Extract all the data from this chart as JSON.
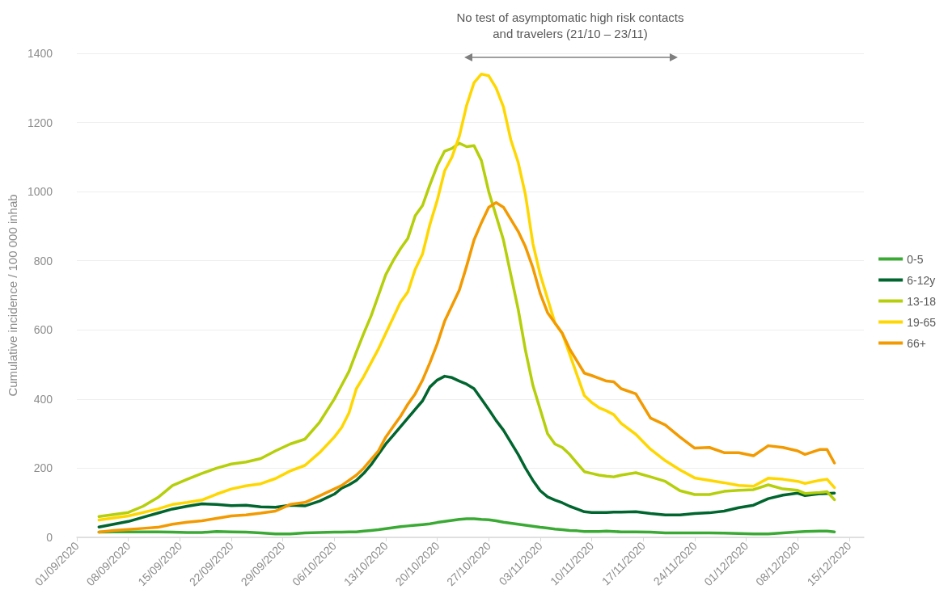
{
  "chart_data": {
    "type": "line",
    "ylabel": "Cumulative incidence / 100 000 inhab",
    "annotations": [
      "No test of asymptomatic high risk contacts and travelers (21/10 – 23/11)"
    ],
    "x": [
      "2020-09-04",
      "2020-09-06",
      "2020-09-08",
      "2020-09-10",
      "2020-09-12",
      "2020-09-14",
      "2020-09-16",
      "2020-09-18",
      "2020-09-20",
      "2020-09-22",
      "2020-09-24",
      "2020-09-26",
      "2020-09-28",
      "2020-09-30",
      "2020-10-02",
      "2020-10-04",
      "2020-10-06",
      "2020-10-07",
      "2020-10-08",
      "2020-10-09",
      "2020-10-10",
      "2020-10-11",
      "2020-10-12",
      "2020-10-13",
      "2020-10-14",
      "2020-10-15",
      "2020-10-16",
      "2020-10-17",
      "2020-10-18",
      "2020-10-19",
      "2020-10-20",
      "2020-10-21",
      "2020-10-22",
      "2020-10-23",
      "2020-10-24",
      "2020-10-25",
      "2020-10-26",
      "2020-10-27",
      "2020-10-28",
      "2020-10-29",
      "2020-10-30",
      "2020-10-31",
      "2020-11-01",
      "2020-11-02",
      "2020-11-03",
      "2020-11-04",
      "2020-11-05",
      "2020-11-06",
      "2020-11-07",
      "2020-11-08",
      "2020-11-09",
      "2020-11-10",
      "2020-11-11",
      "2020-11-12",
      "2020-11-13",
      "2020-11-14",
      "2020-11-16",
      "2020-11-18",
      "2020-11-20",
      "2020-11-22",
      "2020-11-24",
      "2020-11-26",
      "2020-11-28",
      "2020-11-30",
      "2020-12-02",
      "2020-12-04",
      "2020-12-06",
      "2020-12-08",
      "2020-12-09",
      "2020-12-11",
      "2020-12-12",
      "2020-12-13"
    ],
    "series": [
      {
        "name": "0-5",
        "color": "#3aaa35",
        "values": [
          15,
          16,
          16,
          16,
          16,
          15,
          14,
          14,
          17,
          16,
          15,
          13,
          10,
          10,
          13,
          14,
          15,
          15,
          16,
          16,
          18,
          20,
          22,
          25,
          28,
          31,
          33,
          35,
          37,
          39,
          43,
          46,
          49,
          52,
          54,
          54,
          52,
          51,
          48,
          44,
          41,
          38,
          35,
          32,
          29,
          27,
          24,
          22,
          20,
          19,
          17,
          17,
          17,
          18,
          17,
          16,
          16,
          15,
          13,
          13,
          13,
          13,
          12,
          11,
          10,
          10,
          13,
          16,
          17,
          18,
          18,
          16
        ]
      },
      {
        "name": "6-12y",
        "color": "#00652e",
        "values": [
          30,
          38,
          46,
          58,
          70,
          82,
          90,
          97,
          95,
          92,
          93,
          88,
          87,
          93,
          91,
          105,
          125,
          142,
          152,
          165,
          185,
          210,
          240,
          270,
          295,
          320,
          345,
          370,
          395,
          435,
          455,
          466,
          462,
          452,
          443,
          430,
          400,
          370,
          338,
          310,
          275,
          240,
          200,
          165,
          135,
          117,
          108,
          100,
          90,
          82,
          74,
          72,
          72,
          72,
          73,
          73,
          74,
          69,
          65,
          65,
          69,
          71,
          76,
          86,
          93,
          112,
          122,
          128,
          121,
          126,
          127,
          128
        ]
      },
      {
        "name": "13-18",
        "color": "#b5cf0a",
        "values": [
          60,
          66,
          72,
          90,
          115,
          150,
          168,
          185,
          200,
          212,
          218,
          228,
          250,
          270,
          284,
          333,
          400,
          440,
          480,
          536,
          590,
          640,
          700,
          760,
          800,
          835,
          865,
          930,
          960,
          1020,
          1075,
          1117,
          1125,
          1140,
          1130,
          1133,
          1090,
          1000,
          930,
          860,
          760,
          660,
          540,
          440,
          370,
          300,
          270,
          260,
          240,
          215,
          190,
          185,
          180,
          177,
          175,
          180,
          187,
          175,
          162,
          135,
          124,
          124,
          133,
          136,
          138,
          152,
          140,
          136,
          127,
          130,
          132,
          109
        ]
      },
      {
        "name": "19-65",
        "color": "#ffd700",
        "values": [
          50,
          56,
          62,
          72,
          82,
          95,
          101,
          108,
          125,
          140,
          149,
          155,
          170,
          192,
          208,
          245,
          290,
          318,
          360,
          430,
          465,
          505,
          545,
          590,
          635,
          680,
          710,
          775,
          820,
          905,
          975,
          1060,
          1100,
          1160,
          1250,
          1315,
          1340,
          1335,
          1300,
          1245,
          1150,
          1085,
          990,
          850,
          760,
          690,
          620,
          590,
          530,
          470,
          410,
          390,
          375,
          366,
          355,
          330,
          298,
          255,
          222,
          195,
          172,
          165,
          158,
          150,
          148,
          171,
          168,
          162,
          156,
          165,
          168,
          144
        ]
      },
      {
        "name": "66+",
        "color": "#f29a00",
        "values": [
          15,
          20,
          23,
          26,
          29,
          38,
          44,
          48,
          55,
          62,
          65,
          70,
          76,
          95,
          101,
          120,
          140,
          150,
          165,
          180,
          200,
          225,
          250,
          290,
          320,
          350,
          385,
          415,
          455,
          505,
          560,
          625,
          670,
          715,
          785,
          860,
          910,
          955,
          968,
          955,
          920,
          885,
          840,
          780,
          705,
          650,
          620,
          590,
          545,
          510,
          475,
          468,
          460,
          452,
          450,
          430,
          415,
          345,
          325,
          290,
          258,
          260,
          245,
          245,
          236,
          265,
          260,
          250,
          240,
          254,
          254,
          215
        ]
      }
    ],
    "xlim": [
      "2020-09-01",
      "2020-12-17"
    ],
    "xticks": [
      {
        "value": "2020-09-01",
        "label": "01/09/2020"
      },
      {
        "value": "2020-09-08",
        "label": "08/09/2020"
      },
      {
        "value": "2020-09-15",
        "label": "15/09/2020"
      },
      {
        "value": "2020-09-22",
        "label": "22/09/2020"
      },
      {
        "value": "2020-09-29",
        "label": "29/09/2020"
      },
      {
        "value": "2020-10-06",
        "label": "06/10/2020"
      },
      {
        "value": "2020-10-13",
        "label": "13/10/2020"
      },
      {
        "value": "2020-10-20",
        "label": "20/10/2020"
      },
      {
        "value": "2020-10-27",
        "label": "27/10/2020"
      },
      {
        "value": "2020-11-03",
        "label": "03/11/2020"
      },
      {
        "value": "2020-11-10",
        "label": "10/11/2020"
      },
      {
        "value": "2020-11-17",
        "label": "17/11/2020"
      },
      {
        "value": "2020-11-24",
        "label": "24/11/2020"
      },
      {
        "value": "2020-12-01",
        "label": "01/12/2020"
      },
      {
        "value": "2020-12-08",
        "label": "08/12/2020"
      },
      {
        "value": "2020-12-15",
        "label": "15/12/2020"
      }
    ],
    "ylim": [
      0,
      1400
    ],
    "yticks": [
      0,
      200,
      400,
      600,
      800,
      1000,
      1200,
      1400
    ],
    "grid": "y",
    "legend": "right",
    "marker": "none",
    "line_style": "solid"
  }
}
